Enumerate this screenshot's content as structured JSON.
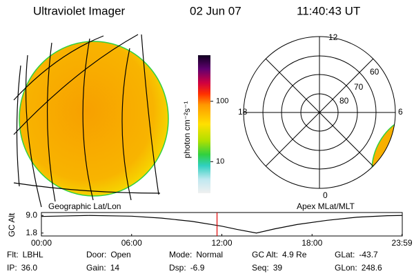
{
  "header": {
    "title": "Ultraviolet Imager",
    "date": "02 Jun 07",
    "time": "11:40:43 UT"
  },
  "left_panel": {
    "label": "Geographic Lat/Lon"
  },
  "colorbar": {
    "label": "photon cm⁻²s⁻¹",
    "scale": "log",
    "ylim": [
      3,
      580
    ],
    "yticks": [
      10,
      100
    ]
  },
  "polar": {
    "label": "Apex MLat/MLT",
    "mlt_labels": [
      "12",
      "18",
      "6",
      "0"
    ],
    "lat_labels": [
      "60",
      "70",
      "80"
    ]
  },
  "altitude": {
    "ylabel": "GC Alt",
    "x": [
      0,
      3.2,
      6,
      8,
      10,
      12,
      13,
      14.3,
      15.5,
      17,
      19,
      21,
      23,
      24
    ],
    "values": [
      8.6,
      9.0,
      8.7,
      7.9,
      6.6,
      4.6,
      3.3,
      1.8,
      3.5,
      5.3,
      7.0,
      8.3,
      8.9,
      9.0
    ],
    "xlim": [
      0,
      24
    ],
    "xticks": [
      {
        "value": 0,
        "label": "00:00"
      },
      {
        "value": 6,
        "label": "06:00"
      },
      {
        "value": 12,
        "label": "12:00"
      },
      {
        "value": 18,
        "label": "18:00"
      },
      {
        "value": 23.98,
        "label": "23:59"
      }
    ],
    "ylim": [
      0.6,
      10.2
    ],
    "yticks": [
      {
        "value": 9,
        "label": "9.0"
      },
      {
        "value": 1.8,
        "label": "1.8"
      }
    ],
    "marker": 11.68,
    "marker_color": "#e00000",
    "line_color": "#000000"
  },
  "info": [
    [
      {
        "label": "Flt:",
        "value": "LBHL"
      },
      {
        "label": "Door:",
        "value": "Open"
      },
      {
        "label": "Mode:",
        "value": "Normal"
      },
      {
        "label": "GC Alt:",
        "value": "4.9 Re"
      },
      {
        "label": "GLat:",
        "value": "-43.7"
      }
    ],
    [
      {
        "label": "IP:",
        "value": "36.0"
      },
      {
        "label": "Gain:",
        "value": "14"
      },
      {
        "label": "Dsp:",
        "value": "-6.9"
      },
      {
        "label": "Seq:",
        "value": "39"
      },
      {
        "label": "GLon:",
        "value": "248.6"
      }
    ]
  ]
}
